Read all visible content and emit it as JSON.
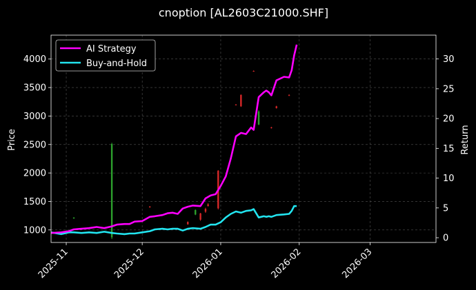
{
  "chart_data": {
    "type": "line",
    "title": "cnoption [AL2603C21000.SHF]",
    "ylabel": "Price",
    "y2label": "Return",
    "ylim": [
      780,
      4420
    ],
    "y2lim": [
      -0.8,
      34.0
    ],
    "xlim": [
      "2025-10-26",
      "2026-03-27"
    ],
    "yticks": [
      1000,
      1500,
      2000,
      2500,
      3000,
      3500,
      4000
    ],
    "y2ticks": [
      0,
      5,
      10,
      15,
      20,
      25,
      30
    ],
    "xticks": [
      "2025-11",
      "2025-12",
      "2026-01",
      "2026-02",
      "2026-03"
    ],
    "grid": true,
    "legend_position": "top-left",
    "background": "#000000",
    "candles_up_color": "#2ca02c",
    "candles_down_color": "#d62728",
    "candles": [
      {
        "date": "2025-11-04",
        "open": 1210,
        "high": 1225,
        "low": 1195,
        "close": 1215
      },
      {
        "date": "2025-11-19",
        "open": 870,
        "high": 2530,
        "low": 840,
        "close": 2510
      },
      {
        "date": "2025-12-04",
        "open": 1410,
        "high": 1420,
        "low": 1390,
        "close": 1400
      },
      {
        "date": "2025-12-19",
        "open": 1140,
        "high": 1150,
        "low": 1090,
        "close": 1100
      },
      {
        "date": "2025-12-22",
        "open": 1270,
        "high": 1360,
        "low": 1260,
        "close": 1350
      },
      {
        "date": "2025-12-24",
        "open": 1290,
        "high": 1300,
        "low": 1160,
        "close": 1180
      },
      {
        "date": "2025-12-26",
        "open": 1370,
        "high": 1390,
        "low": 1300,
        "close": 1320
      },
      {
        "date": "2025-12-27",
        "open": 1450,
        "high": 1470,
        "low": 1410,
        "close": 1420
      },
      {
        "date": "2025-12-31",
        "open": 2040,
        "high": 2050,
        "low": 1360,
        "close": 1380
      },
      {
        "date": "2026-01-07",
        "open": 3200,
        "high": 3210,
        "low": 3190,
        "close": 3195
      },
      {
        "date": "2026-01-09",
        "open": 3370,
        "high": 3380,
        "low": 3160,
        "close": 3170
      },
      {
        "date": "2026-01-14",
        "open": 3790,
        "high": 3800,
        "low": 3780,
        "close": 3785
      },
      {
        "date": "2026-01-16",
        "open": 2850,
        "high": 3100,
        "low": 2840,
        "close": 3080
      },
      {
        "date": "2026-01-21",
        "open": 2800,
        "high": 2810,
        "low": 2780,
        "close": 2790
      },
      {
        "date": "2026-01-23",
        "open": 3170,
        "high": 3180,
        "low": 3130,
        "close": 3140
      },
      {
        "date": "2026-01-28",
        "open": 3370,
        "high": 3380,
        "low": 3350,
        "close": 3360
      }
    ],
    "series": [
      {
        "name": "AI Strategy",
        "axis": "right",
        "color": "#ff00ff",
        "x": [
          "2025-10-26",
          "2025-10-30",
          "2025-11-02",
          "2025-11-04",
          "2025-11-07",
          "2025-11-10",
          "2025-11-13",
          "2025-11-16",
          "2025-11-19",
          "2025-11-21",
          "2025-11-24",
          "2025-11-26",
          "2025-11-28",
          "2025-12-01",
          "2025-12-04",
          "2025-12-06",
          "2025-12-09",
          "2025-12-11",
          "2025-12-13",
          "2025-12-15",
          "2025-12-17",
          "2025-12-19",
          "2025-12-21",
          "2025-12-24",
          "2025-12-26",
          "2025-12-28",
          "2025-12-30",
          "2026-01-01",
          "2026-01-03",
          "2026-01-05",
          "2026-01-07",
          "2026-01-09",
          "2026-01-11",
          "2026-01-13",
          "2026-01-14",
          "2026-01-16",
          "2026-01-18",
          "2026-01-19",
          "2026-01-20",
          "2026-01-21",
          "2026-01-23",
          "2026-01-26",
          "2026-01-28",
          "2026-01-29",
          "2026-01-30",
          "2026-01-31"
        ],
        "values": [
          0.8,
          0.9,
          1.1,
          1.4,
          1.5,
          1.6,
          1.8,
          1.6,
          1.9,
          2.2,
          2.3,
          2.3,
          2.7,
          2.8,
          3.5,
          3.6,
          3.8,
          4.1,
          4.2,
          4.0,
          4.9,
          5.2,
          5.4,
          5.3,
          6.6,
          7.1,
          7.3,
          8.7,
          10.3,
          13.3,
          17.0,
          17.6,
          17.4,
          18.5,
          18.1,
          23.6,
          24.4,
          24.7,
          24.4,
          23.9,
          26.4,
          27.0,
          26.9,
          28.1,
          30.6,
          32.4
        ]
      },
      {
        "name": "Buy-and-Hold",
        "axis": "right",
        "color": "#22e5f0",
        "x": [
          "2025-10-26",
          "2025-10-30",
          "2025-11-02",
          "2025-11-04",
          "2025-11-07",
          "2025-11-10",
          "2025-11-13",
          "2025-11-16",
          "2025-11-19",
          "2025-11-21",
          "2025-11-24",
          "2025-11-26",
          "2025-11-28",
          "2025-12-01",
          "2025-12-04",
          "2025-12-06",
          "2025-12-09",
          "2025-12-11",
          "2025-12-13",
          "2025-12-15",
          "2025-12-17",
          "2025-12-19",
          "2025-12-21",
          "2025-12-24",
          "2025-12-26",
          "2025-12-28",
          "2025-12-30",
          "2026-01-01",
          "2026-01-03",
          "2026-01-05",
          "2026-01-07",
          "2026-01-09",
          "2026-01-11",
          "2026-01-13",
          "2026-01-14",
          "2026-01-16",
          "2026-01-18",
          "2026-01-19",
          "2026-01-20",
          "2026-01-21",
          "2026-01-23",
          "2026-01-26",
          "2026-01-28",
          "2026-01-29",
          "2026-01-30",
          "2026-01-31"
        ],
        "values": [
          0.9,
          0.6,
          0.9,
          0.9,
          0.8,
          0.9,
          0.8,
          1.0,
          0.8,
          0.7,
          0.6,
          0.7,
          0.7,
          0.9,
          1.1,
          1.4,
          1.5,
          1.4,
          1.5,
          1.5,
          1.2,
          1.5,
          1.6,
          1.5,
          1.8,
          2.2,
          2.2,
          2.6,
          3.4,
          4.0,
          4.4,
          4.2,
          4.5,
          4.6,
          4.8,
          3.4,
          3.6,
          3.5,
          3.6,
          3.5,
          3.8,
          3.9,
          4.0,
          4.5,
          5.3,
          5.3
        ]
      }
    ]
  }
}
